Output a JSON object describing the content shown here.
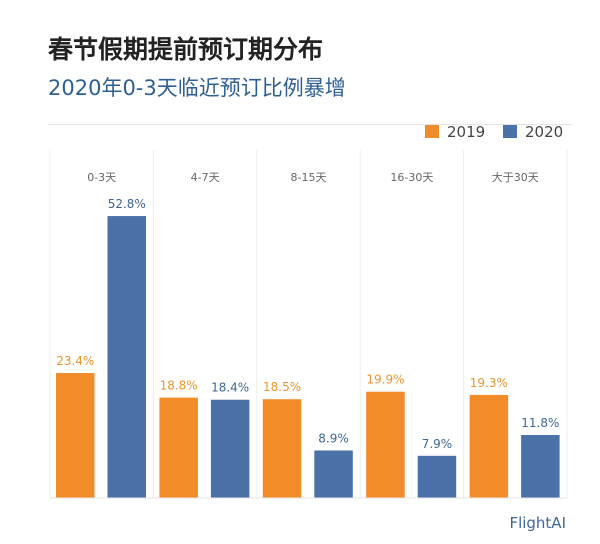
{
  "chart_data": {
    "type": "bar",
    "title": "春节假期提前预订期分布",
    "subtitle": "2020年0-3天临近预订比例暴增",
    "categories": [
      "0-3天",
      "4-7天",
      "8-15天",
      "16-30天",
      "大于30天"
    ],
    "series": [
      {
        "name": "2019",
        "color": "#f28c28",
        "values": [
          23.4,
          18.8,
          18.5,
          19.9,
          19.3
        ],
        "labels": [
          "23.4%",
          "18.8%",
          "18.5%",
          "19.9%",
          "19.3%"
        ]
      },
      {
        "name": "2020",
        "color": "#4a72a8",
        "values": [
          52.8,
          18.4,
          8.9,
          7.9,
          11.8
        ],
        "labels": [
          "52.8%",
          "18.4%",
          "8.9%",
          "7.9%",
          "11.8%"
        ]
      }
    ],
    "unit": "%",
    "legend": "top-right",
    "grid": false,
    "source": "FlightAI"
  }
}
